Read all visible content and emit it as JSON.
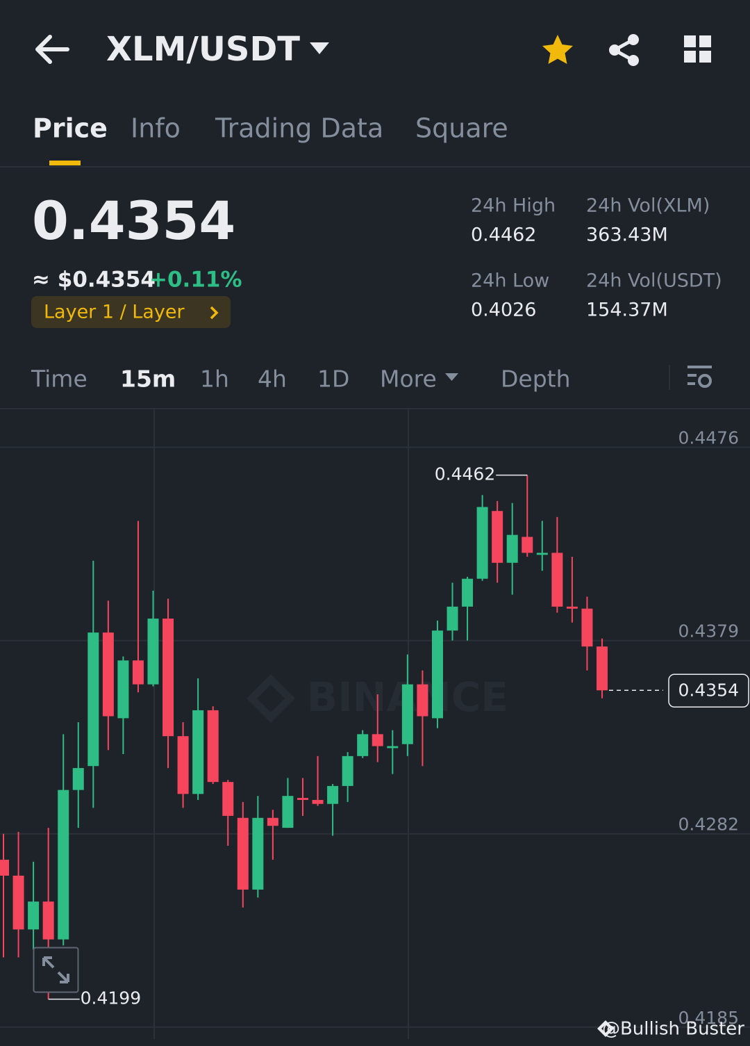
{
  "header": {
    "pair": "XLM/USDT"
  },
  "tabs": [
    "Price",
    "Info",
    "Trading Data",
    "Square"
  ],
  "ticker": {
    "price": "0.4354",
    "usd_price": "≈ $0.4354",
    "change": "+0.11%",
    "tag": "Layer 1 / Layer",
    "stats": [
      {
        "label": "24h High",
        "value": "0.4462"
      },
      {
        "label": "24h Vol(XLM)",
        "value": "363.43M"
      },
      {
        "label": "24h Low",
        "value": "0.4026"
      },
      {
        "label": "24h Vol(USDT)",
        "value": "154.37M"
      }
    ]
  },
  "intervals": [
    "Time",
    "15m",
    "1h",
    "4h",
    "1D",
    "More",
    "Depth"
  ],
  "chart_data": {
    "type": "candlestick",
    "watermark": "BINANCE",
    "up_color": "#2ebd85",
    "down_color": "#f6465d",
    "grid": true,
    "ylim": [
      0.4179,
      0.4495
    ],
    "yticks": [
      0.4476,
      0.4379,
      0.4282,
      0.4185
    ],
    "open": [
      0.4269,
      0.4261,
      0.4234,
      0.4248,
      0.4229,
      0.4304,
      0.4316,
      0.4383,
      0.434,
      0.4369,
      0.4357,
      0.439,
      0.4331,
      0.4302,
      0.4344,
      0.4308,
      0.429,
      0.4254,
      0.429,
      0.4285,
      0.43,
      0.4299,
      0.4297,
      0.4306,
      0.4321,
      0.4332,
      0.4325,
      0.4327,
      0.4357,
      0.434,
      0.4384,
      0.4396,
      0.441,
      0.4444,
      0.4418,
      0.4431,
      0.4422,
      0.4423,
      0.4396,
      0.4395,
      0.4376
    ],
    "high": [
      0.4282,
      0.4283,
      0.4268,
      0.4285,
      0.4332,
      0.4338,
      0.4419,
      0.4399,
      0.4371,
      0.4439,
      0.4404,
      0.44,
      0.4338,
      0.436,
      0.4346,
      0.4309,
      0.4298,
      0.4301,
      0.4294,
      0.431,
      0.431,
      0.4321,
      0.4307,
      0.4323,
      0.4334,
      0.4352,
      0.4334,
      0.4372,
      0.4364,
      0.4389,
      0.4408,
      0.4411,
      0.4452,
      0.4449,
      0.4448,
      0.4462,
      0.4439,
      0.4441,
      0.4421,
      0.4401,
      0.438
    ],
    "low": [
      0.422,
      0.422,
      0.4224,
      0.4199,
      0.4226,
      0.4285,
      0.4295,
      0.4324,
      0.4322,
      0.4353,
      0.4356,
      0.4315,
      0.4295,
      0.4299,
      0.4307,
      0.4276,
      0.4245,
      0.425,
      0.4269,
      0.4285,
      0.4291,
      0.4296,
      0.4281,
      0.4298,
      0.432,
      0.4318,
      0.4312,
      0.4321,
      0.4316,
      0.4335,
      0.4379,
      0.4379,
      0.4409,
      0.4408,
      0.4402,
      0.4421,
      0.4414,
      0.4393,
      0.4388,
      0.4364,
      0.435
    ],
    "close": [
      0.4261,
      0.4234,
      0.4248,
      0.4229,
      0.4304,
      0.4315,
      0.4383,
      0.4341,
      0.4369,
      0.4357,
      0.439,
      0.4331,
      0.4302,
      0.4344,
      0.4308,
      0.4291,
      0.4254,
      0.429,
      0.4286,
      0.4301,
      0.4299,
      0.4297,
      0.4306,
      0.4321,
      0.4332,
      0.4326,
      0.4326,
      0.4357,
      0.4341,
      0.4384,
      0.4396,
      0.441,
      0.4446,
      0.4418,
      0.4432,
      0.4423,
      0.4423,
      0.4396,
      0.4395,
      0.4376,
      0.4354
    ]
  },
  "credit": "@Bullish Buster"
}
